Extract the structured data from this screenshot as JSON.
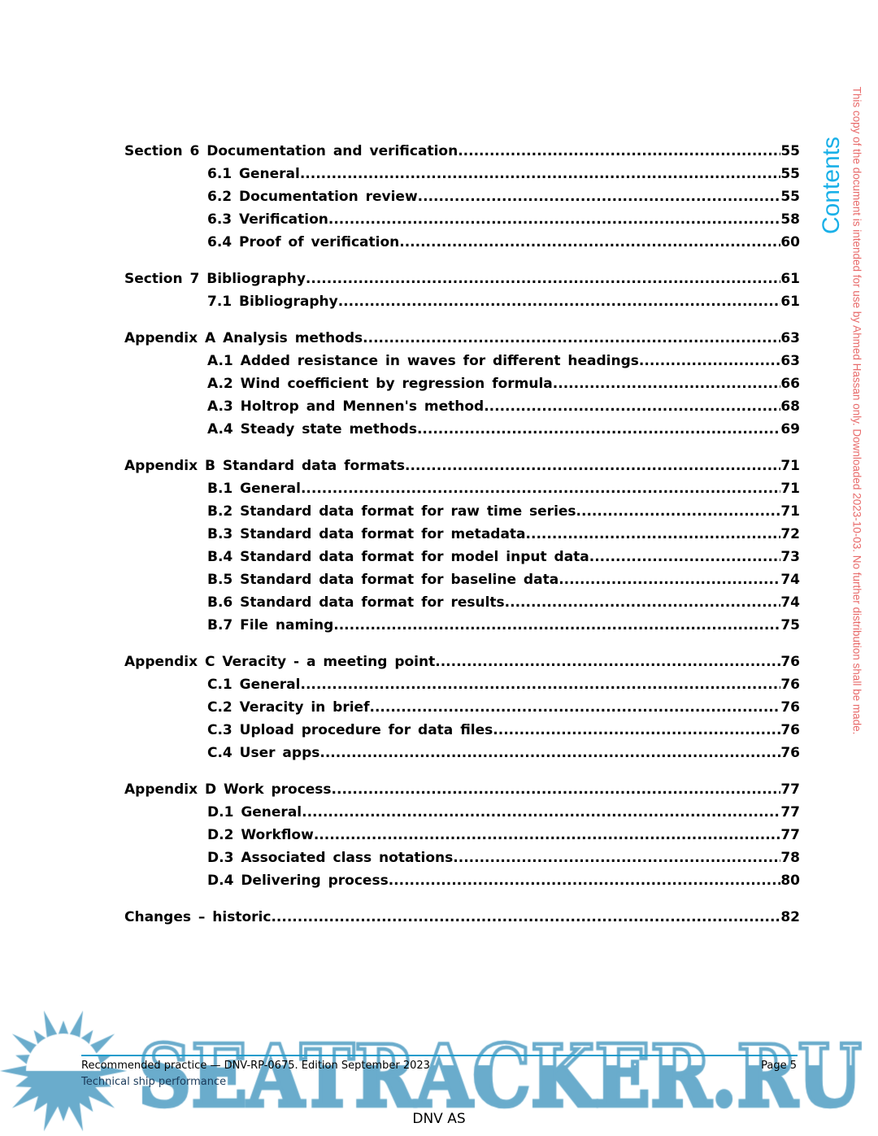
{
  "side_title": "Contents",
  "side_note": "This copy of the document is intended for use by Ahmed Hassan only. Downloaded 2023-10-03. No further distribution shall be made.",
  "toc": [
    {
      "title": "Section 6 Documentation and verification",
      "page": "55",
      "items": [
        {
          "title": "6.1 General",
          "page": "55"
        },
        {
          "title": "6.2 Documentation review",
          "page": "55"
        },
        {
          "title": "6.3 Verification",
          "page": "58"
        },
        {
          "title": "6.4 Proof of verification",
          "page": "60"
        }
      ]
    },
    {
      "title": "Section 7 Bibliography",
      "page": "61",
      "items": [
        {
          "title": "7.1 Bibliography",
          "page": "61"
        }
      ]
    },
    {
      "title": "Appendix A Analysis methods",
      "page": "63",
      "items": [
        {
          "title": "A.1 Added resistance in waves for different headings",
          "page": "63"
        },
        {
          "title": "A.2 Wind coefficient by regression formula",
          "page": "66"
        },
        {
          "title": "A.3 Holtrop and Mennen's method",
          "page": "68"
        },
        {
          "title": "A.4 Steady state methods",
          "page": "69"
        }
      ]
    },
    {
      "title": "Appendix B Standard data formats",
      "page": "71",
      "items": [
        {
          "title": "B.1 General",
          "page": "71"
        },
        {
          "title": "B.2 Standard data format for raw time series",
          "page": "71"
        },
        {
          "title": "B.3 Standard data format for metadata",
          "page": "72"
        },
        {
          "title": "B.4 Standard data format for model input data",
          "page": "73"
        },
        {
          "title": "B.5 Standard data format for baseline data",
          "page": "74"
        },
        {
          "title": "B.6 Standard data format for results",
          "page": "74"
        },
        {
          "title": "B.7 File naming",
          "page": "75"
        }
      ]
    },
    {
      "title": "Appendix C Veracity - a meeting point",
      "page": "76",
      "items": [
        {
          "title": "C.1 General",
          "page": "76"
        },
        {
          "title": "C.2 Veracity in brief",
          "page": "76"
        },
        {
          "title": "C.3 Upload procedure for data files",
          "page": "76"
        },
        {
          "title": "C.4 User apps",
          "page": "76"
        }
      ]
    },
    {
      "title": "Appendix D Work process",
      "page": "77",
      "items": [
        {
          "title": "D.1 General",
          "page": "77"
        },
        {
          "title": "D.2 Workflow",
          "page": "77"
        },
        {
          "title": "D.3 Associated class notations",
          "page": "78"
        },
        {
          "title": "D.4 Delivering process",
          "page": "80"
        }
      ]
    },
    {
      "title": "Changes – historic",
      "page": "82",
      "items": []
    }
  ],
  "footer": {
    "line1": "Recommended practice — DNV-RP-0675. Edition September 2023",
    "line2": "Technical ship performance",
    "page": "Page 5",
    "company": "DNV AS"
  },
  "watermark": {
    "text": "SEATRACKER.RU",
    "color": "#6aaccc"
  }
}
